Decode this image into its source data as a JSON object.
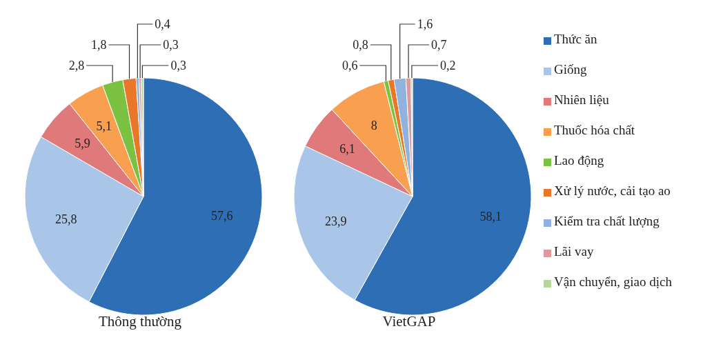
{
  "chart_data": [
    {
      "type": "pie",
      "title": "Thông thường",
      "categories": [
        null,
        null,
        null,
        null,
        null,
        null,
        null,
        null,
        null
      ],
      "values": [
        57.6,
        25.8,
        5.9,
        5.1,
        2.8,
        1.8,
        0.4,
        0.3,
        0.3
      ],
      "value_labels": [
        "57,6",
        "25,8",
        "5,9",
        "5,1",
        "2,8",
        "1,8",
        "0,4",
        "0,3",
        "0,3"
      ],
      "colors": [
        "#2e6eb5",
        "#a9c6e8",
        "#e07a7a",
        "#f9a050",
        "#7cc242",
        "#e8772a",
        "#8fb2de",
        "#dc9a9e",
        "#b3d69a"
      ],
      "legend": false
    },
    {
      "type": "pie",
      "title": "VietGAP",
      "categories": [
        "Thức ăn",
        "Giống",
        "Nhiên liệu",
        "Thuốc hóa chất",
        "Lao động",
        "Xử lý nước, cải tạo ao",
        "Kiểm tra chất lượng",
        "Lãi vay",
        "Vận chuyển, giao dịch"
      ],
      "values": [
        58.1,
        23.9,
        6.1,
        8,
        0.6,
        0.8,
        1.6,
        0.7,
        0.2
      ],
      "value_labels": [
        "58,1",
        "23,9",
        "6,1",
        "8",
        "0,6",
        "0,8",
        "1,6",
        "0,7",
        "0,2"
      ],
      "colors": [
        "#2e6eb5",
        "#a9c6e8",
        "#e07a7a",
        "#f9a050",
        "#7cc242",
        "#e8772a",
        "#8fb2de",
        "#dc9a9e",
        "#b3d69a"
      ],
      "legend": "right"
    }
  ]
}
